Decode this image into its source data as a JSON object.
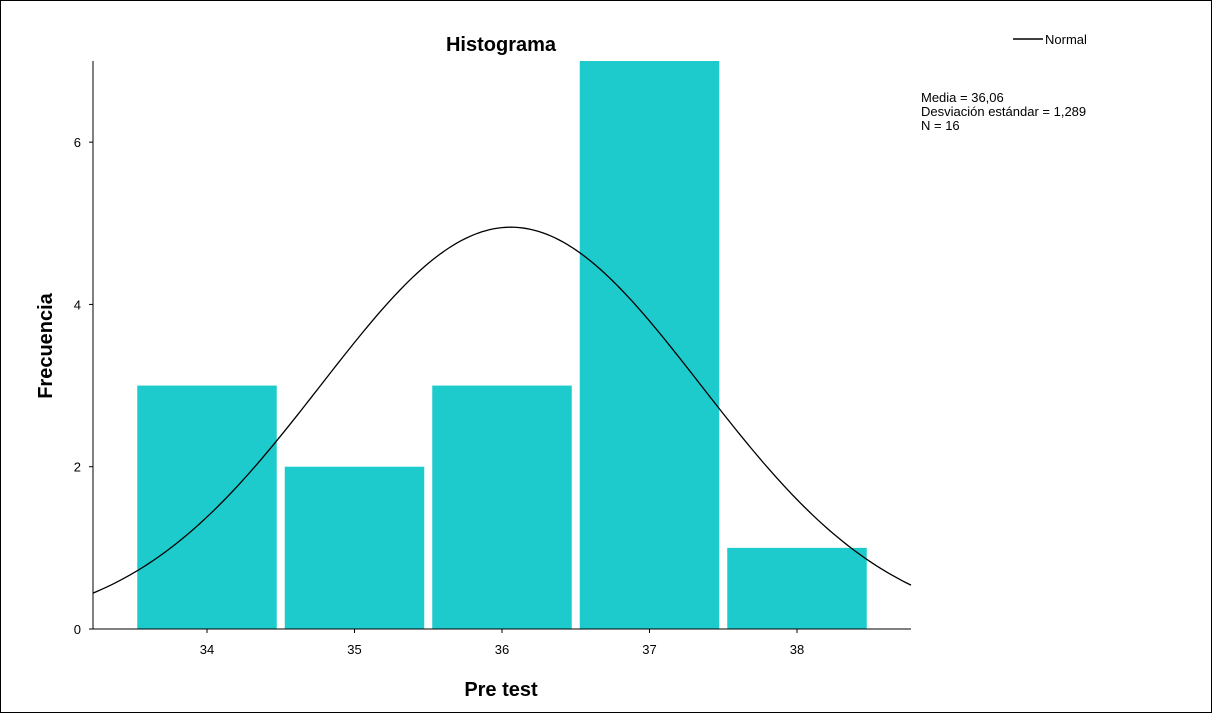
{
  "chart_data": {
    "type": "bar",
    "title": "Histograma",
    "xlabel": "Pre test",
    "ylabel": "Frecuencia",
    "categories": [
      "34",
      "35",
      "36",
      "37",
      "38"
    ],
    "values": [
      3,
      2,
      3,
      7,
      1
    ],
    "series": [
      {
        "name": "Normal",
        "values": [
          3,
          2,
          3,
          7,
          1
        ]
      }
    ],
    "ylim": [
      0,
      7.0
    ],
    "yticks": [
      "0",
      "2",
      "4",
      "6"
    ],
    "normal_curve": {
      "mean": 36.06,
      "sd": 1.289,
      "n": 16,
      "bin_width": 1,
      "color": "#000000"
    },
    "stats": [
      "Media = 36,06",
      "Desviación estándar = 1,289",
      "N = 16"
    ],
    "legend": {
      "label": "Normal",
      "position": "top-right"
    },
    "bar_color": "#1ecbcc",
    "grid": false
  }
}
